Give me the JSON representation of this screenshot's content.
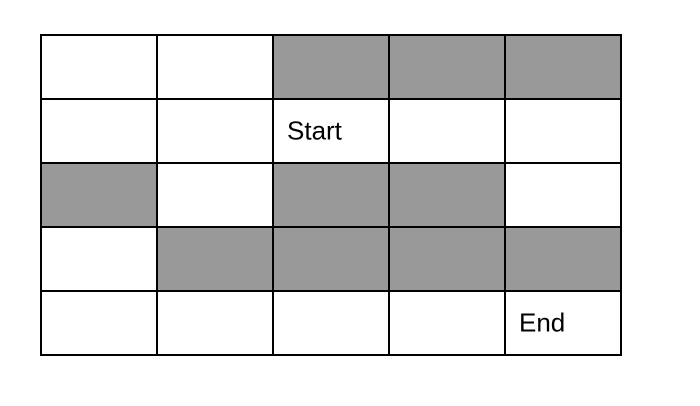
{
  "grid": {
    "rows": 5,
    "columns": 5,
    "shaded_color": "#999999",
    "open_color": "#ffffff",
    "cells": [
      [
        "open",
        "open",
        "shaded",
        "shaded",
        "shaded"
      ],
      [
        "open",
        "open",
        "open",
        "open",
        "open"
      ],
      [
        "shaded",
        "open",
        "shaded",
        "shaded",
        "open"
      ],
      [
        "open",
        "shaded",
        "shaded",
        "shaded",
        "shaded"
      ],
      [
        "open",
        "open",
        "open",
        "open",
        "open"
      ]
    ],
    "start": {
      "row": 2,
      "column": 3,
      "label": "Start"
    },
    "end": {
      "row": 5,
      "column": 5,
      "label": "End"
    }
  }
}
